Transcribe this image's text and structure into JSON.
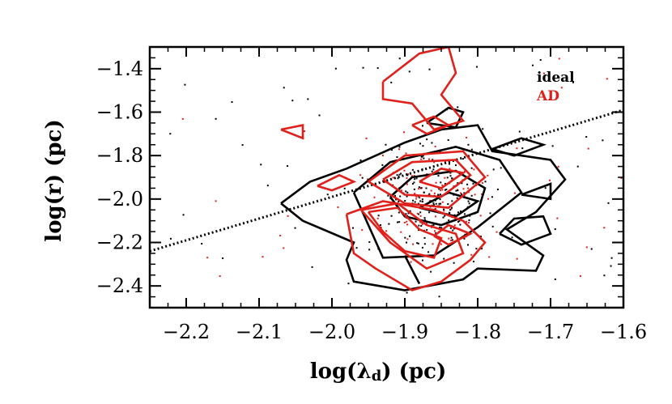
{
  "chart_data": {
    "type": "scatter",
    "xlabel_main": "log(",
    "xlabel_symbol": "λ",
    "xlabel_sub": "d",
    "xlabel_tail": ") (pc)",
    "ylabel": "log(r) (pc)",
    "xlim": [
      -2.25,
      -1.6
    ],
    "ylim": [
      -2.5,
      -1.3
    ],
    "x_ticks": [
      -2.2,
      -2.1,
      -2.0,
      -1.9,
      -1.8,
      -1.7,
      -1.6
    ],
    "x_tick_labels": [
      "−2.2",
      "−2.1",
      "−2.0",
      "−1.9",
      "−1.8",
      "−1.7",
      "−1.6"
    ],
    "y_ticks": [
      -2.4,
      -2.2,
      -2.0,
      -1.8,
      -1.6,
      -1.4
    ],
    "y_tick_labels": [
      "−2.4",
      "−2.2",
      "−2.0",
      "−1.8",
      "−1.6",
      "−1.4"
    ],
    "grid": false,
    "legend_position": "top-right",
    "legend": [
      {
        "label": "ideal",
        "color": "#000000"
      },
      {
        "label": "AD",
        "color": "#e0201a"
      }
    ],
    "fit_line": {
      "style": "dotted",
      "color": "#000000",
      "points": [
        [
          -2.25,
          -2.24
        ],
        [
          -1.6,
          -1.59
        ]
      ]
    },
    "contours": [
      {
        "series": "ideal",
        "color": "#000000",
        "points": [
          [
            -2.07,
            -2.02
          ],
          [
            -2.03,
            -1.92
          ],
          [
            -1.98,
            -1.86
          ],
          [
            -1.9,
            -1.74
          ],
          [
            -1.85,
            -1.68
          ],
          [
            -1.8,
            -1.66
          ],
          [
            -1.78,
            -1.78
          ],
          [
            -1.7,
            -1.82
          ],
          [
            -1.68,
            -1.91
          ],
          [
            -1.72,
            -2.06
          ],
          [
            -1.76,
            -2.14
          ],
          [
            -1.71,
            -2.26
          ],
          [
            -1.72,
            -2.33
          ],
          [
            -1.8,
            -2.32
          ],
          [
            -1.82,
            -2.37
          ],
          [
            -1.9,
            -2.42
          ],
          [
            -1.97,
            -2.38
          ],
          [
            -1.98,
            -2.28
          ],
          [
            -1.97,
            -2.2
          ],
          [
            -2.04,
            -2.1
          ],
          [
            -2.07,
            -2.02
          ]
        ]
      },
      {
        "series": "ideal",
        "color": "#000000",
        "points": [
          [
            -1.97,
            -1.97
          ],
          [
            -1.92,
            -1.83
          ],
          [
            -1.83,
            -1.76
          ],
          [
            -1.77,
            -1.82
          ],
          [
            -1.74,
            -1.97
          ],
          [
            -1.8,
            -2.13
          ],
          [
            -1.86,
            -2.26
          ],
          [
            -1.93,
            -2.27
          ],
          [
            -1.95,
            -2.12
          ],
          [
            -1.97,
            -1.97
          ]
        ]
      },
      {
        "series": "ideal",
        "color": "#000000",
        "points": [
          [
            -1.92,
            -1.99
          ],
          [
            -1.89,
            -1.9
          ],
          [
            -1.83,
            -1.87
          ],
          [
            -1.79,
            -1.95
          ],
          [
            -1.8,
            -2.06
          ],
          [
            -1.85,
            -2.12
          ],
          [
            -1.9,
            -2.08
          ],
          [
            -1.92,
            -1.99
          ]
        ]
      },
      {
        "series": "ideal",
        "color": "#000000",
        "points": [
          [
            -1.88,
            -2.04
          ],
          [
            -1.84,
            -1.97
          ],
          [
            -1.8,
            -2.01
          ],
          [
            -1.83,
            -2.08
          ],
          [
            -1.88,
            -2.04
          ]
        ]
      },
      {
        "series": "ideal",
        "color": "#000000",
        "points": [
          [
            -1.78,
            -1.77
          ],
          [
            -1.74,
            -1.72
          ],
          [
            -1.71,
            -1.75
          ],
          [
            -1.75,
            -1.8
          ],
          [
            -1.78,
            -1.77
          ]
        ]
      },
      {
        "series": "ideal",
        "color": "#000000",
        "points": [
          [
            -1.77,
            -2.16
          ],
          [
            -1.75,
            -2.09
          ],
          [
            -1.71,
            -2.08
          ],
          [
            -1.7,
            -2.16
          ],
          [
            -1.74,
            -2.21
          ],
          [
            -1.77,
            -2.16
          ]
        ]
      },
      {
        "series": "ideal",
        "color": "#000000",
        "points": [
          [
            -1.87,
            -1.65
          ],
          [
            -1.84,
            -1.58
          ],
          [
            -1.82,
            -1.6
          ],
          [
            -1.83,
            -1.67
          ],
          [
            -1.87,
            -1.65
          ]
        ]
      },
      {
        "series": "ideal",
        "color": "#000000",
        "points": [
          [
            -1.9,
            -2.26
          ],
          [
            -1.88,
            -2.39
          ]
        ]
      },
      {
        "series": "ideal",
        "color": "#000000",
        "points": [
          [
            -1.74,
            -1.98
          ],
          [
            -1.7,
            -1.93
          ],
          [
            -1.7,
            -2.0
          ],
          [
            -1.74,
            -1.98
          ]
        ]
      },
      {
        "series": "AD",
        "color": "#e0201a",
        "points": [
          [
            -1.93,
            -1.46
          ],
          [
            -1.88,
            -1.33
          ],
          [
            -1.84,
            -1.3
          ],
          [
            -1.83,
            -1.42
          ],
          [
            -1.85,
            -1.52
          ],
          [
            -1.82,
            -1.64
          ],
          [
            -1.86,
            -1.68
          ],
          [
            -1.89,
            -1.56
          ],
          [
            -1.93,
            -1.54
          ],
          [
            -1.93,
            -1.46
          ]
        ]
      },
      {
        "series": "AD",
        "color": "#e0201a",
        "points": [
          [
            -1.95,
            -1.92
          ],
          [
            -1.9,
            -1.8
          ],
          [
            -1.82,
            -1.78
          ],
          [
            -1.79,
            -1.9
          ],
          [
            -1.84,
            -2.04
          ],
          [
            -1.9,
            -2.02
          ],
          [
            -1.95,
            -1.92
          ]
        ]
      },
      {
        "series": "AD",
        "color": "#e0201a",
        "points": [
          [
            -1.93,
            -1.91
          ],
          [
            -1.89,
            -1.83
          ],
          [
            -1.83,
            -1.82
          ],
          [
            -1.81,
            -1.89
          ],
          [
            -1.85,
            -1.99
          ],
          [
            -1.9,
            -1.98
          ],
          [
            -1.93,
            -1.91
          ]
        ]
      },
      {
        "series": "AD",
        "color": "#e0201a",
        "points": [
          [
            -1.96,
            -2.05
          ],
          [
            -1.91,
            -2.02
          ],
          [
            -1.87,
            -2.12
          ],
          [
            -1.83,
            -2.16
          ],
          [
            -1.82,
            -2.25
          ],
          [
            -1.87,
            -2.32
          ],
          [
            -1.92,
            -2.2
          ],
          [
            -1.96,
            -2.05
          ]
        ]
      },
      {
        "series": "AD",
        "color": "#e0201a",
        "points": [
          [
            -1.95,
            -2.06
          ],
          [
            -1.91,
            -2.04
          ],
          [
            -1.88,
            -2.14
          ],
          [
            -1.85,
            -2.18
          ],
          [
            -1.86,
            -2.27
          ],
          [
            -1.9,
            -2.24
          ],
          [
            -1.93,
            -2.15
          ],
          [
            -1.95,
            -2.06
          ]
        ]
      },
      {
        "series": "AD",
        "color": "#e0201a",
        "points": [
          [
            -1.98,
            -2.07
          ],
          [
            -1.97,
            -2.25
          ],
          [
            -1.94,
            -2.32
          ],
          [
            -1.89,
            -2.42
          ],
          [
            -1.85,
            -2.38
          ],
          [
            -1.81,
            -2.28
          ],
          [
            -1.79,
            -2.2
          ],
          [
            -1.82,
            -2.1
          ],
          [
            -1.86,
            -2.05
          ],
          [
            -1.93,
            -2.01
          ],
          [
            -1.98,
            -2.07
          ]
        ]
      },
      {
        "series": "AD",
        "color": "#e0201a",
        "points": [
          [
            -1.86,
            -2.17
          ],
          [
            -1.84,
            -2.12
          ],
          [
            -1.81,
            -2.16
          ],
          [
            -1.84,
            -2.21
          ],
          [
            -1.86,
            -2.17
          ]
        ]
      },
      {
        "series": "AD",
        "color": "#e0201a",
        "points": [
          [
            -2.07,
            -1.68
          ],
          [
            -2.04,
            -1.66
          ],
          [
            -2.04,
            -1.72
          ],
          [
            -2.07,
            -1.68
          ]
        ]
      },
      {
        "series": "AD",
        "color": "#e0201a",
        "points": [
          [
            -2.02,
            -1.94
          ],
          [
            -1.99,
            -1.89
          ],
          [
            -1.97,
            -1.92
          ],
          [
            -2.0,
            -1.96
          ],
          [
            -2.02,
            -1.94
          ]
        ]
      },
      {
        "series": "AD",
        "color": "#e0201a",
        "points": [
          [
            -1.88,
            -1.92
          ],
          [
            -1.85,
            -1.86
          ],
          [
            -1.82,
            -1.88
          ],
          [
            -1.85,
            -1.95
          ],
          [
            -1.88,
            -1.92
          ]
        ]
      },
      {
        "series": "AD",
        "color": "#e0201a",
        "points": [
          [
            -1.89,
            -1.66
          ],
          [
            -1.86,
            -1.62
          ],
          [
            -1.84,
            -1.66
          ],
          [
            -1.87,
            -1.7
          ],
          [
            -1.89,
            -1.66
          ]
        ]
      }
    ]
  }
}
